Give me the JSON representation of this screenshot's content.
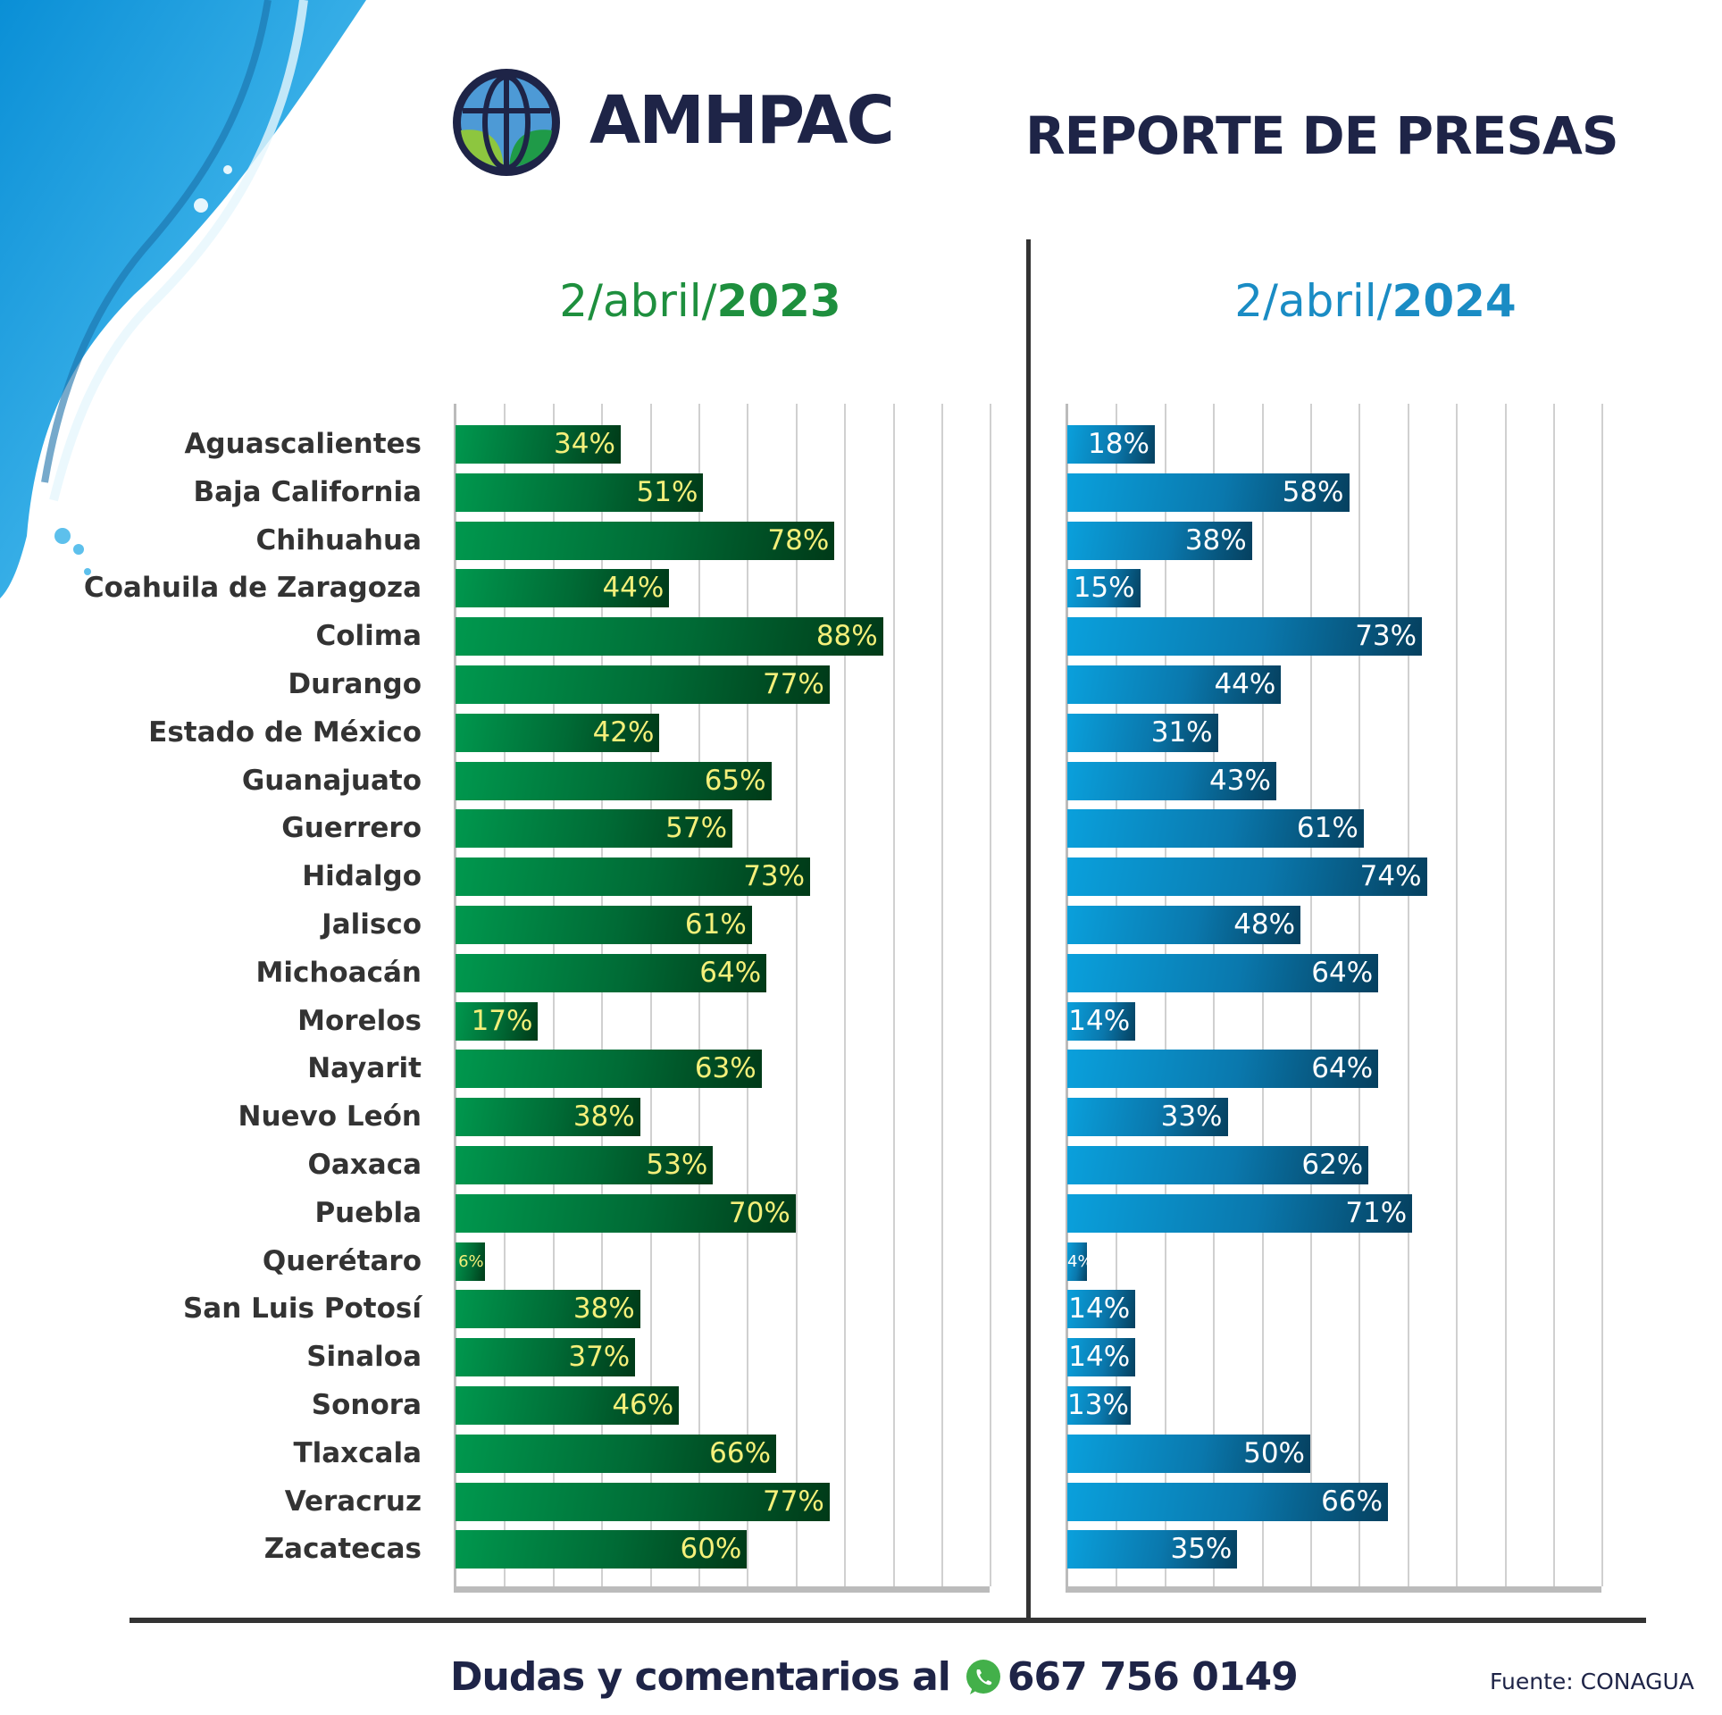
{
  "header": {
    "logo_text": "AMHPAC",
    "title": "REPORTE DE PRESAS"
  },
  "footer": {
    "contact_text": "Dudas y comentarios al",
    "phone": "667 756 0149",
    "source": "Fuente: CONAGUA"
  },
  "colors": {
    "navy": "#1e2447",
    "green_series": "#00984e",
    "blue_series": "#0aa0dc",
    "green_label": "#f5f07a",
    "blue_label": "#ffffff"
  },
  "icons": [
    "globe-logo-icon",
    "whatsapp-icon"
  ],
  "chart_data": [
    {
      "type": "bar",
      "orientation": "horizontal",
      "title_prefix": "2/abril/",
      "title_year": "2023",
      "xlim": [
        0,
        110
      ],
      "grid": true,
      "categories": [
        "Aguascalientes",
        "Baja California",
        "Chihuahua",
        "Coahuila de Zaragoza",
        "Colima",
        "Durango",
        "Estado de México",
        "Guanajuato",
        "Guerrero",
        "Hidalgo",
        "Jalisco",
        "Michoacán",
        "Morelos",
        "Nayarit",
        "Nuevo León",
        "Oaxaca",
        "Puebla",
        "Querétaro",
        "San Luis Potosí",
        "Sinaloa",
        "Sonora",
        "Tlaxcala",
        "Veracruz",
        "Zacatecas"
      ],
      "values": [
        34,
        51,
        78,
        44,
        88,
        77,
        42,
        65,
        57,
        73,
        61,
        64,
        17,
        63,
        38,
        53,
        70,
        6,
        38,
        37,
        46,
        66,
        77,
        60
      ],
      "unit": "%"
    },
    {
      "type": "bar",
      "orientation": "horizontal",
      "title_prefix": "2/abril/",
      "title_year": "2024",
      "xlim": [
        0,
        110
      ],
      "grid": true,
      "categories": [
        "Aguascalientes",
        "Baja California",
        "Chihuahua",
        "Coahuila de Zaragoza",
        "Colima",
        "Durango",
        "Estado de México",
        "Guanajuato",
        "Guerrero",
        "Hidalgo",
        "Jalisco",
        "Michoacán",
        "Morelos",
        "Nayarit",
        "Nuevo León",
        "Oaxaca",
        "Puebla",
        "Querétaro",
        "San Luis Potosí",
        "Sinaloa",
        "Sonora",
        "Tlaxcala",
        "Veracruz",
        "Zacatecas"
      ],
      "values": [
        18,
        58,
        38,
        15,
        73,
        44,
        31,
        43,
        61,
        74,
        48,
        64,
        14,
        64,
        33,
        62,
        71,
        4,
        14,
        14,
        13,
        50,
        66,
        35
      ],
      "unit": "%"
    }
  ]
}
